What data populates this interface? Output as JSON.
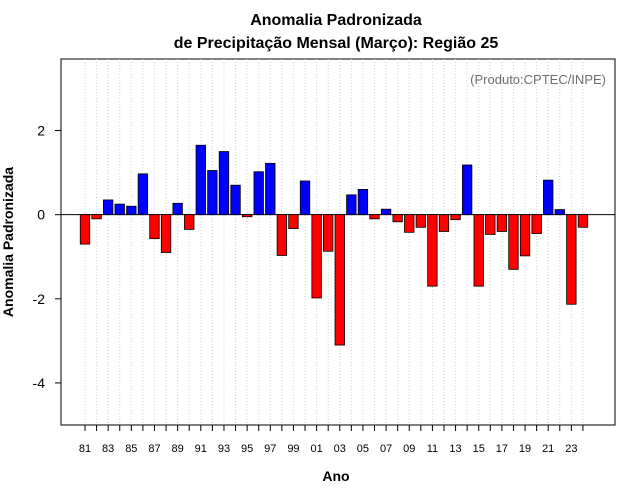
{
  "chart_data": {
    "type": "bar",
    "title_line1": "Anomalia Padronizada",
    "title_line2": "de Precipitação Mensal (Março): Região 25",
    "xlabel": "Ano",
    "ylabel": "Anomalia Padronizada",
    "credit": "(Produto:CPTEC/INPE)",
    "ylim": [
      -5,
      3.7
    ],
    "yticks": [
      -4,
      -2,
      0,
      2
    ],
    "grid": true,
    "positive_color": "#0000ff",
    "negative_color": "#ff0000",
    "categories": [
      "81",
      "82",
      "83",
      "84",
      "85",
      "86",
      "87",
      "88",
      "89",
      "90",
      "91",
      "92",
      "93",
      "94",
      "95",
      "96",
      "97",
      "98",
      "99",
      "00",
      "01",
      "02",
      "03",
      "04",
      "05",
      "06",
      "07",
      "08",
      "09",
      "10",
      "11",
      "12",
      "13",
      "14",
      "15",
      "16",
      "17",
      "18",
      "19",
      "20",
      "21",
      "22",
      "23",
      "24"
    ],
    "tick_labels": [
      "81",
      "83",
      "85",
      "87",
      "89",
      "91",
      "93",
      "95",
      "97",
      "99",
      "01",
      "03",
      "05",
      "07",
      "09",
      "11",
      "13",
      "15",
      "17",
      "19",
      "21",
      "23"
    ],
    "values": [
      -0.7,
      -0.1,
      0.35,
      0.25,
      0.2,
      0.97,
      -0.57,
      -0.9,
      0.27,
      -0.35,
      1.65,
      1.05,
      1.5,
      0.7,
      -0.05,
      1.02,
      1.22,
      -0.97,
      -0.33,
      0.8,
      -1.98,
      -0.87,
      -3.1,
      0.47,
      0.6,
      -0.1,
      0.13,
      -0.17,
      -0.42,
      -0.3,
      -1.7,
      -0.4,
      -0.12,
      1.18,
      -1.7,
      -0.47,
      -0.4,
      -1.3,
      -0.98,
      -0.45,
      0.82,
      0.12,
      -2.13,
      -0.3
    ]
  }
}
